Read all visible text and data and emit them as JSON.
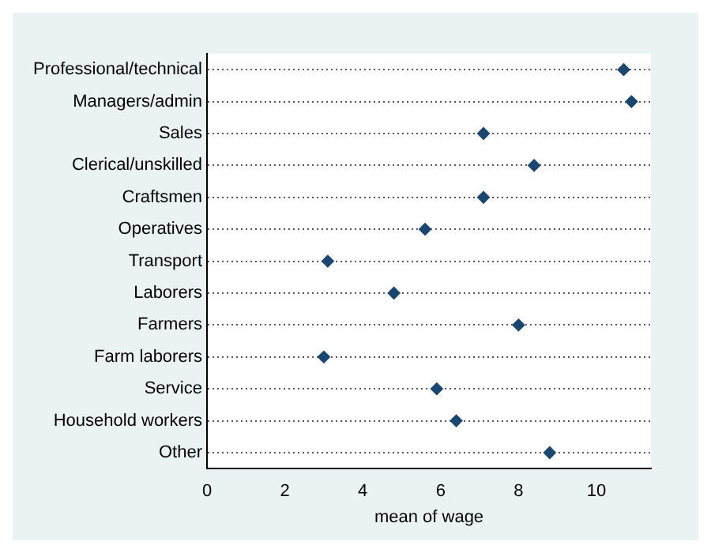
{
  "chart_data": {
    "type": "scatter",
    "orientation": "horizontal",
    "xlabel": "mean of wage",
    "categories": [
      "Professional/technical",
      "Managers/admin",
      "Sales",
      "Clerical/unskilled",
      "Craftsmen",
      "Operatives",
      "Transport",
      "Laborers",
      "Farmers",
      "Farm laborers",
      "Service",
      "Household workers",
      "Other"
    ],
    "values": [
      10.7,
      10.9,
      7.1,
      8.4,
      7.1,
      5.6,
      3.1,
      4.8,
      8.0,
      3.0,
      5.9,
      6.4,
      8.8
    ],
    "color": "#1a476f",
    "marker": "diamond",
    "xlim": [
      0,
      11.4
    ],
    "xticks": [
      0,
      2,
      4,
      6,
      8,
      10
    ],
    "grid": "y",
    "line_style": "dotted",
    "legend": false
  }
}
